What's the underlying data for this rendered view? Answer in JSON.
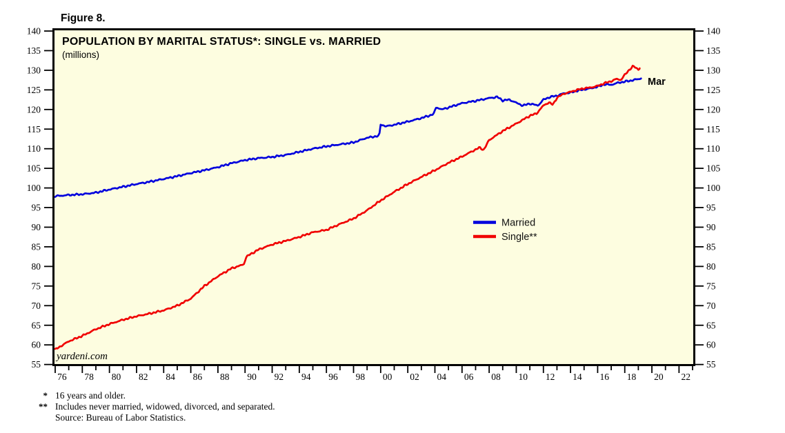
{
  "figure_label": "Figure 8.",
  "watermark": "yardeni.com",
  "colors": {
    "plot_background": "#FDFDE0",
    "border": "#000000",
    "married_blue": "#0000DD",
    "single_red": "#F00000"
  },
  "footnotes": [
    {
      "marker": "*",
      "text": "16 years and older."
    },
    {
      "marker": "**",
      "text": "Includes never married, widowed, divorced, and separated."
    },
    {
      "marker": "",
      "text": "Source: Bureau of Labor Statistics."
    }
  ],
  "chart_data": {
    "type": "line",
    "title": "POPULATION BY MARITAL STATUS*: SINGLE vs. MARRIED",
    "subtitle": "(millions)",
    "end_label": "Mar",
    "legend_position": "middle-right",
    "grid": false,
    "y_axis": {
      "min": 55,
      "max": 140,
      "step": 5,
      "sides": "both",
      "ticks": [
        55,
        60,
        65,
        70,
        75,
        80,
        85,
        90,
        95,
        100,
        105,
        110,
        115,
        120,
        125,
        130,
        135,
        140
      ]
    },
    "x_axis": {
      "start": 1976,
      "end": 2023,
      "tick_every_year": true,
      "labels": [
        "76",
        "78",
        "80",
        "82",
        "84",
        "86",
        "88",
        "90",
        "92",
        "94",
        "96",
        "98",
        "00",
        "02",
        "04",
        "06",
        "08",
        "10",
        "12",
        "14",
        "16",
        "18",
        "20",
        "22"
      ],
      "label_years": [
        1976,
        1978,
        1980,
        1982,
        1984,
        1986,
        1988,
        1990,
        1992,
        1994,
        1996,
        1998,
        2000,
        2002,
        2004,
        2006,
        2008,
        2010,
        2012,
        2014,
        2016,
        2018,
        2020,
        2022
      ]
    },
    "series": [
      {
        "name": "Married",
        "color": "#0000DD",
        "last_point_label": "Mar 2019",
        "points": [
          [
            1976,
            97.9
          ],
          [
            1977,
            98.2
          ],
          [
            1978,
            98.4
          ],
          [
            1979,
            98.8
          ],
          [
            1980,
            99.6
          ],
          [
            1981,
            100.3
          ],
          [
            1982,
            101.0
          ],
          [
            1983,
            101.6
          ],
          [
            1984,
            102.3
          ],
          [
            1985,
            103.0
          ],
          [
            1986,
            103.8
          ],
          [
            1987,
            104.5
          ],
          [
            1988,
            105.3
          ],
          [
            1989,
            106.3
          ],
          [
            1990,
            107.1
          ],
          [
            1991,
            107.6
          ],
          [
            1992,
            107.9
          ],
          [
            1993,
            108.4
          ],
          [
            1994,
            109.2
          ],
          [
            1995,
            110.0
          ],
          [
            1996,
            110.6
          ],
          [
            1997,
            111.1
          ],
          [
            1998,
            111.6
          ],
          [
            1999,
            112.8
          ],
          [
            1999.9,
            113.3
          ],
          [
            2000,
            116.2
          ],
          [
            2000.4,
            115.7
          ],
          [
            2001,
            116.1
          ],
          [
            2002,
            116.9
          ],
          [
            2003,
            117.8
          ],
          [
            2003.9,
            118.8
          ],
          [
            2004.1,
            120.6
          ],
          [
            2004.5,
            120.0
          ],
          [
            2005,
            120.5
          ],
          [
            2006,
            121.6
          ],
          [
            2007,
            122.2
          ],
          [
            2008,
            122.9
          ],
          [
            2008.6,
            123.2
          ],
          [
            2009,
            122.3
          ],
          [
            2009.5,
            122.5
          ],
          [
            2010,
            121.7
          ],
          [
            2010.5,
            121.0
          ],
          [
            2011,
            121.5
          ],
          [
            2011.6,
            121.0
          ],
          [
            2012,
            122.5
          ],
          [
            2012.5,
            123.2
          ],
          [
            2013,
            123.5
          ],
          [
            2013.5,
            124.1
          ],
          [
            2014,
            124.3
          ],
          [
            2014.5,
            124.8
          ],
          [
            2015,
            125.1
          ],
          [
            2015.5,
            125.4
          ],
          [
            2016,
            125.8
          ],
          [
            2016.5,
            126.4
          ],
          [
            2017,
            126.3
          ],
          [
            2017.5,
            126.8
          ],
          [
            2018,
            127.1
          ],
          [
            2018.5,
            127.4
          ],
          [
            2019.2,
            127.9
          ]
        ]
      },
      {
        "name": "Single**",
        "color": "#F00000",
        "points": [
          [
            1976,
            58.8
          ],
          [
            1977,
            60.9
          ],
          [
            1978,
            62.3
          ],
          [
            1979,
            64.0
          ],
          [
            1980,
            65.3
          ],
          [
            1981,
            66.4
          ],
          [
            1982,
            67.3
          ],
          [
            1983,
            68.0
          ],
          [
            1984,
            68.8
          ],
          [
            1985,
            70.0
          ],
          [
            1986,
            71.8
          ],
          [
            1987,
            75.0
          ],
          [
            1988,
            77.5
          ],
          [
            1989,
            79.5
          ],
          [
            1989.9,
            80.5
          ],
          [
            1990.1,
            82.5
          ],
          [
            1990.5,
            83.3
          ],
          [
            1991,
            84.3
          ],
          [
            1992,
            85.6
          ],
          [
            1993,
            86.5
          ],
          [
            1994,
            87.5
          ],
          [
            1995,
            88.7
          ],
          [
            1996,
            89.3
          ],
          [
            1997,
            90.8
          ],
          [
            1998,
            92.2
          ],
          [
            1999,
            94.3
          ],
          [
            2000,
            96.8
          ],
          [
            2001,
            99.0
          ],
          [
            2002,
            101.0
          ],
          [
            2003,
            102.8
          ],
          [
            2004,
            104.5
          ],
          [
            2005,
            106.4
          ],
          [
            2006,
            108.0
          ],
          [
            2007,
            109.8
          ],
          [
            2007.3,
            110.3
          ],
          [
            2007.6,
            109.7
          ],
          [
            2008,
            112.2
          ],
          [
            2009,
            114.5
          ],
          [
            2010,
            116.4
          ],
          [
            2011,
            118.4
          ],
          [
            2011.5,
            119.0
          ],
          [
            2012,
            121.0
          ],
          [
            2012.4,
            121.8
          ],
          [
            2012.7,
            121.2
          ],
          [
            2013,
            123.0
          ],
          [
            2013.5,
            124.0
          ],
          [
            2014,
            124.5
          ],
          [
            2014.5,
            125.0
          ],
          [
            2015,
            125.4
          ],
          [
            2015.5,
            125.6
          ],
          [
            2016,
            126.0
          ],
          [
            2016.5,
            126.7
          ],
          [
            2017,
            127.2
          ],
          [
            2017.4,
            127.8
          ],
          [
            2017.7,
            127.5
          ],
          [
            2018,
            128.8
          ],
          [
            2018.3,
            130.0
          ],
          [
            2018.6,
            131.0
          ],
          [
            2018.8,
            130.7
          ],
          [
            2019.0,
            130.2
          ],
          [
            2019.1,
            130.5
          ]
        ]
      }
    ]
  }
}
